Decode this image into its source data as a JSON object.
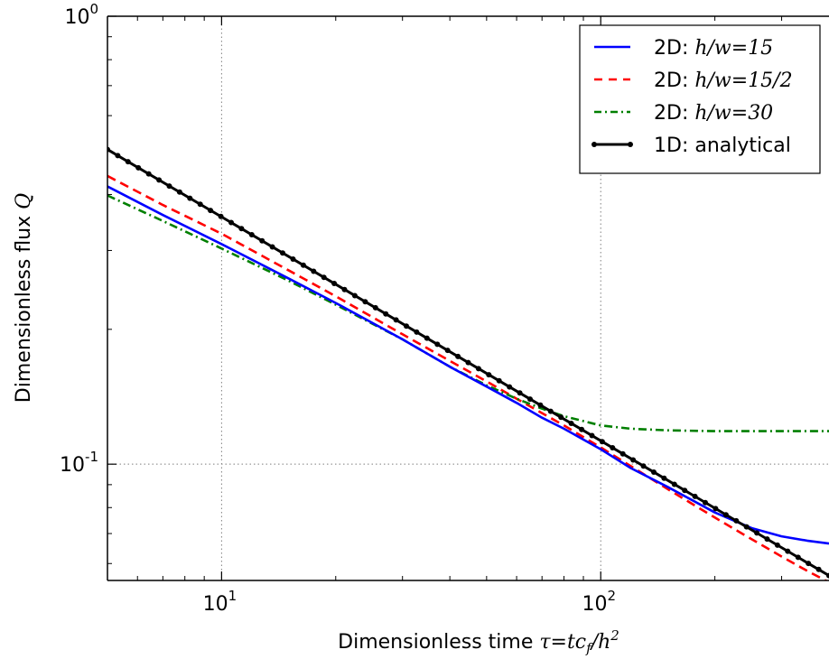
{
  "chart_data": {
    "type": "line",
    "x_scale": "log",
    "y_scale": "log",
    "xlim": [
      5,
      400
    ],
    "ylim": [
      0.055,
      1.0
    ],
    "grid": true,
    "legend_position": "top-right",
    "xlabel_text": "Dimensionless time ",
    "xlabel_math": "τ=tc",
    "xlabel_math_sub": "f",
    "xlabel_math_end": "/h",
    "xlabel_math_sup": "2",
    "ylabel_text": "Dimensionless flux ",
    "ylabel_math": "Q",
    "x_ticks": [
      {
        "value": 10,
        "base": "10",
        "exp": "1"
      },
      {
        "value": 100,
        "base": "10",
        "exp": "2"
      }
    ],
    "y_ticks": [
      {
        "value": 0.1,
        "base": "10",
        "exp": "-1"
      },
      {
        "value": 1.0,
        "base": "10",
        "exp": "0"
      }
    ],
    "series": [
      {
        "name_prefix": "2D: ",
        "name_math": "h/w=15",
        "color": "#0000ff",
        "style": "solid",
        "x": [
          5,
          7,
          10,
          15,
          20,
          30,
          40,
          50,
          60,
          70,
          80,
          100,
          120,
          150,
          200,
          250,
          300,
          350,
          400
        ],
        "y": [
          0.417,
          0.36,
          0.31,
          0.26,
          0.229,
          0.19,
          0.165,
          0.149,
          0.137,
          0.127,
          0.12,
          0.108,
          0.098,
          0.089,
          0.078,
          0.072,
          0.069,
          0.0675,
          0.0665
        ]
      },
      {
        "name_prefix": "2D: ",
        "name_math": "h/w=15/2",
        "color": "#ff0000",
        "style": "dashed",
        "x": [
          5,
          7,
          10,
          15,
          20,
          30,
          40,
          50,
          60,
          70,
          80,
          100,
          120,
          150,
          200,
          250,
          300,
          350,
          400
        ],
        "y": [
          0.44,
          0.379,
          0.327,
          0.271,
          0.237,
          0.195,
          0.17,
          0.153,
          0.14,
          0.13,
          0.122,
          0.109,
          0.099,
          0.088,
          0.076,
          0.068,
          0.0622,
          0.0578,
          0.0545
        ]
      },
      {
        "name_prefix": "2D: ",
        "name_math": "h/w=30",
        "color": "#007f00",
        "style": "dashdot",
        "x": [
          5,
          7,
          10,
          15,
          20,
          30,
          40,
          50,
          60,
          70,
          80,
          100,
          120,
          150,
          200,
          250,
          300,
          350,
          400
        ],
        "y": [
          0.398,
          0.349,
          0.303,
          0.257,
          0.227,
          0.19,
          0.165,
          0.15,
          0.14,
          0.133,
          0.128,
          0.122,
          0.12,
          0.119,
          0.1185,
          0.1185,
          0.1185,
          0.1185,
          0.1185
        ]
      },
      {
        "name_prefix": "1D: ",
        "name_text": "analytical",
        "color": "#000000",
        "style": "solid-markers",
        "x": [
          5,
          400
        ],
        "y": [
          0.504,
          0.0564
        ]
      }
    ]
  }
}
